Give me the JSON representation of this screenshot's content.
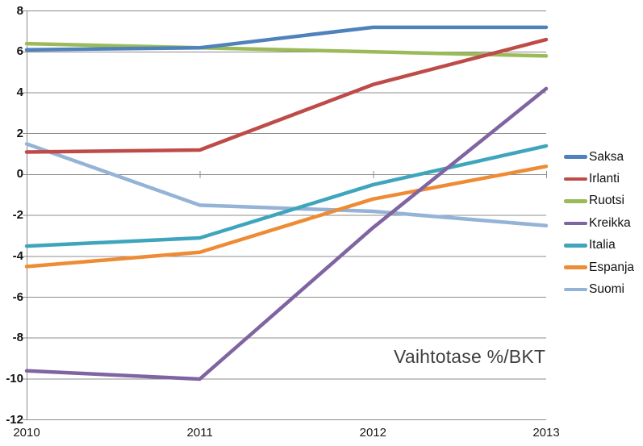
{
  "chart_data": {
    "type": "line",
    "title_annotation": "Vaihtotase %/BKT",
    "categories": [
      "2010",
      "2011",
      "2012",
      "2013"
    ],
    "series": [
      {
        "name": "Saksa",
        "color": "#4F81BD",
        "values": [
          6.1,
          6.2,
          7.2,
          7.2
        ]
      },
      {
        "name": "Irlanti",
        "color": "#BE4B48",
        "values": [
          1.1,
          1.2,
          4.4,
          6.6
        ]
      },
      {
        "name": "Ruotsi",
        "color": "#9BBB59",
        "values": [
          6.4,
          6.2,
          6.0,
          5.8
        ]
      },
      {
        "name": "Kreikka",
        "color": "#8064A2",
        "values": [
          -9.6,
          -10.0,
          -2.6,
          4.2
        ]
      },
      {
        "name": "Italia",
        "color": "#3EA5BC",
        "values": [
          -3.5,
          -3.1,
          -0.5,
          1.4
        ]
      },
      {
        "name": "Espanja",
        "color": "#EE8B35",
        "values": [
          -4.5,
          -3.8,
          -1.2,
          0.4
        ]
      },
      {
        "name": "Suomi",
        "color": "#95B3D7",
        "values": [
          1.5,
          -1.5,
          -1.8,
          -2.5
        ]
      }
    ],
    "ylim": [
      -12,
      8
    ],
    "yticks": [
      8,
      6,
      4,
      2,
      0,
      -2,
      -4,
      -6,
      -8,
      -10,
      -12
    ],
    "grid": true,
    "legend_position": "right",
    "gridline_color": "#8C8C8C",
    "axis_label_color": "#121212",
    "background_color": "#FFFFFF"
  }
}
